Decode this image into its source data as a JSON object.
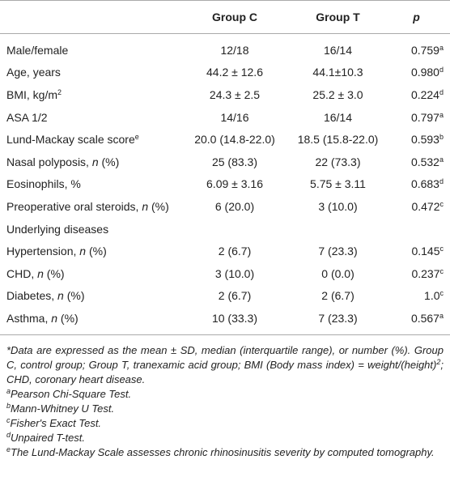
{
  "table": {
    "columns": [
      "Group C",
      "Group T",
      "p"
    ],
    "rows": [
      {
        "label": [
          {
            "text": "Male/female"
          }
        ],
        "c": "12/18",
        "t": "16/14",
        "p": "0.759",
        "note": "a"
      },
      {
        "label": [
          {
            "text": "Age, years"
          }
        ],
        "c": "44.2 ± 12.6",
        "t": "44.1±10.3",
        "p": "0.980",
        "note": "d"
      },
      {
        "label": [
          {
            "text": "BMI, kg/m"
          },
          {
            "text": "2",
            "style": "sup"
          }
        ],
        "c": "24.3 ± 2.5",
        "t": "25.2 ± 3.0",
        "p": "0.224",
        "note": "d"
      },
      {
        "label": [
          {
            "text": "ASA 1/2"
          }
        ],
        "c": "14/16",
        "t": "16/14",
        "p": "0.797",
        "note": "a"
      },
      {
        "label": [
          {
            "text": "Lund-Mackay scale score"
          },
          {
            "text": "e",
            "style": "sup"
          }
        ],
        "c": "20.0 (14.8-22.0)",
        "t": "18.5 (15.8-22.0)",
        "p": "0.593",
        "note": "b"
      },
      {
        "label": [
          {
            "text": "Nasal polyposis, "
          },
          {
            "text": "n",
            "style": "italic"
          },
          {
            "text": " (%)"
          }
        ],
        "c": "25 (83.3)",
        "t": "22 (73.3)",
        "p": "0.532",
        "note": "a"
      },
      {
        "label": [
          {
            "text": "Eosinophils, %"
          }
        ],
        "c": "6.09 ± 3.16",
        "t": "5.75 ± 3.11",
        "p": "0.683",
        "note": "d"
      },
      {
        "label": [
          {
            "text": "Preoperative oral steroids, "
          },
          {
            "text": "n",
            "style": "italic"
          },
          {
            "text": " (%)"
          }
        ],
        "c": "6 (20.0)",
        "t": "3 (10.0)",
        "p": "0.472",
        "note": "c"
      },
      {
        "label": [
          {
            "text": "Underlying diseases"
          }
        ]
      },
      {
        "label": [
          {
            "text": "Hypertension, "
          },
          {
            "text": "n",
            "style": "italic"
          },
          {
            "text": " (%)"
          }
        ],
        "c": "2 (6.7)",
        "t": "7 (23.3)",
        "p": "0.145",
        "note": "c"
      },
      {
        "label": [
          {
            "text": "CHD, "
          },
          {
            "text": "n",
            "style": "italic"
          },
          {
            "text": " (%)"
          }
        ],
        "c": "3 (10.0)",
        "t": "0 (0.0)",
        "p": "0.237",
        "note": "c"
      },
      {
        "label": [
          {
            "text": "Diabetes, "
          },
          {
            "text": "n",
            "style": "italic"
          },
          {
            "text": " (%)"
          }
        ],
        "c": "2 (6.7)",
        "t": "2 (6.7)",
        "p": "1.0",
        "note": "c"
      },
      {
        "label": [
          {
            "text": "Asthma, "
          },
          {
            "text": "n",
            "style": "italic"
          },
          {
            "text": " (%)"
          }
        ],
        "c": "10 (33.3)",
        "t": "7 (23.3)",
        "p": "0.567",
        "note": "a"
      }
    ],
    "footnotes": [
      [
        {
          "text": "*Data are expressed as the mean ± SD, median (interquartile range), or number (%). Group C, control group; Group T, tranexamic acid group; BMI (Body mass index) = weight/(height)"
        },
        {
          "text": "2",
          "style": "sup"
        },
        {
          "text": "; CHD, coronary heart disease."
        }
      ],
      [
        {
          "text": "a",
          "style": "sup"
        },
        {
          "text": "Pearson Chi-Square Test."
        }
      ],
      [
        {
          "text": "b",
          "style": "sup"
        },
        {
          "text": "Mann-Whitney U Test."
        }
      ],
      [
        {
          "text": "c",
          "style": "sup"
        },
        {
          "text": "Fisher's Exact Test."
        }
      ],
      [
        {
          "text": "d",
          "style": "sup"
        },
        {
          "text": "Unpaired T-test."
        }
      ],
      [
        {
          "text": "e",
          "style": "sup"
        },
        {
          "text": "The Lund-Mackay Scale assesses chronic rhinosinusitis severity by computed tomography."
        }
      ]
    ]
  }
}
